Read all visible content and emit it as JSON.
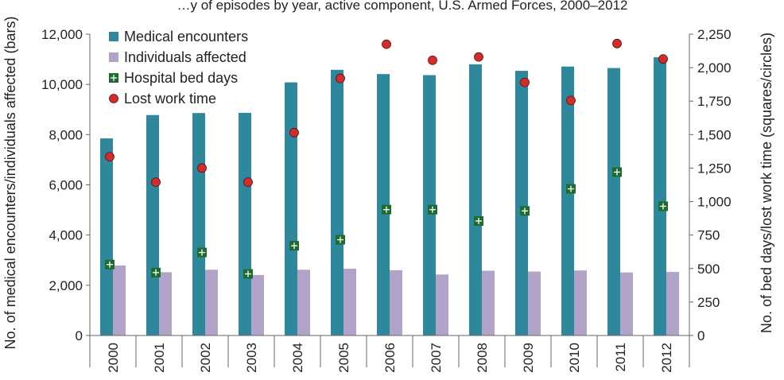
{
  "chart_data": {
    "type": "bar",
    "title": "…y of episodes by year, active component, U.S. Armed Forces, 2000–2012",
    "categories": [
      "2000",
      "2001",
      "2002",
      "2003",
      "2004",
      "2005",
      "2006",
      "2007",
      "2008",
      "2009",
      "2010",
      "2011",
      "2012"
    ],
    "ylabel_left": "No. of medical encounters/individuals affected (bars)",
    "ylabel_right": "No. of bed days/lost work time (squares/circles)",
    "ylim_left": [
      0,
      12000
    ],
    "ylim_right": [
      0,
      2250
    ],
    "yticks_left": [
      0,
      2000,
      4000,
      6000,
      8000,
      10000,
      12000
    ],
    "yticks_left_labels": [
      "0",
      "2,000",
      "4,000",
      "6,000",
      "8,000",
      "10,000",
      "12,000"
    ],
    "yticks_right": [
      0,
      250,
      500,
      750,
      1000,
      1250,
      1500,
      1750,
      2000,
      2250
    ],
    "yticks_right_labels": [
      "0",
      "250",
      "500",
      "750",
      "1,000",
      "1,250",
      "1,500",
      "1,750",
      "2,000",
      "2,250"
    ],
    "grid": false,
    "legend_position": "top-left",
    "series": [
      {
        "name": "Medical encounters",
        "kind": "bar",
        "axis": "left",
        "color": "#2e879b",
        "values": [
          7850,
          8780,
          8860,
          8870,
          10080,
          10580,
          10410,
          10370,
          10800,
          10540,
          10710,
          10650,
          11080
        ]
      },
      {
        "name": "Individuals affected",
        "kind": "bar",
        "axis": "left",
        "color": "#b2a3c8",
        "values": [
          2790,
          2520,
          2620,
          2410,
          2620,
          2660,
          2600,
          2430,
          2580,
          2550,
          2590,
          2510,
          2530
        ]
      },
      {
        "name": "Hospital bed days",
        "kind": "square",
        "axis": "right",
        "color": "#1e6b2e",
        "values": [
          530,
          470,
          620,
          460,
          670,
          715,
          940,
          940,
          855,
          930,
          1095,
          1220,
          965
        ]
      },
      {
        "name": "Lost work time",
        "kind": "circle",
        "axis": "right",
        "color": "#d42b2b",
        "values": [
          1335,
          1145,
          1250,
          1145,
          1515,
          1920,
          2175,
          2055,
          2080,
          1890,
          1755,
          2180,
          2065
        ]
      }
    ]
  }
}
